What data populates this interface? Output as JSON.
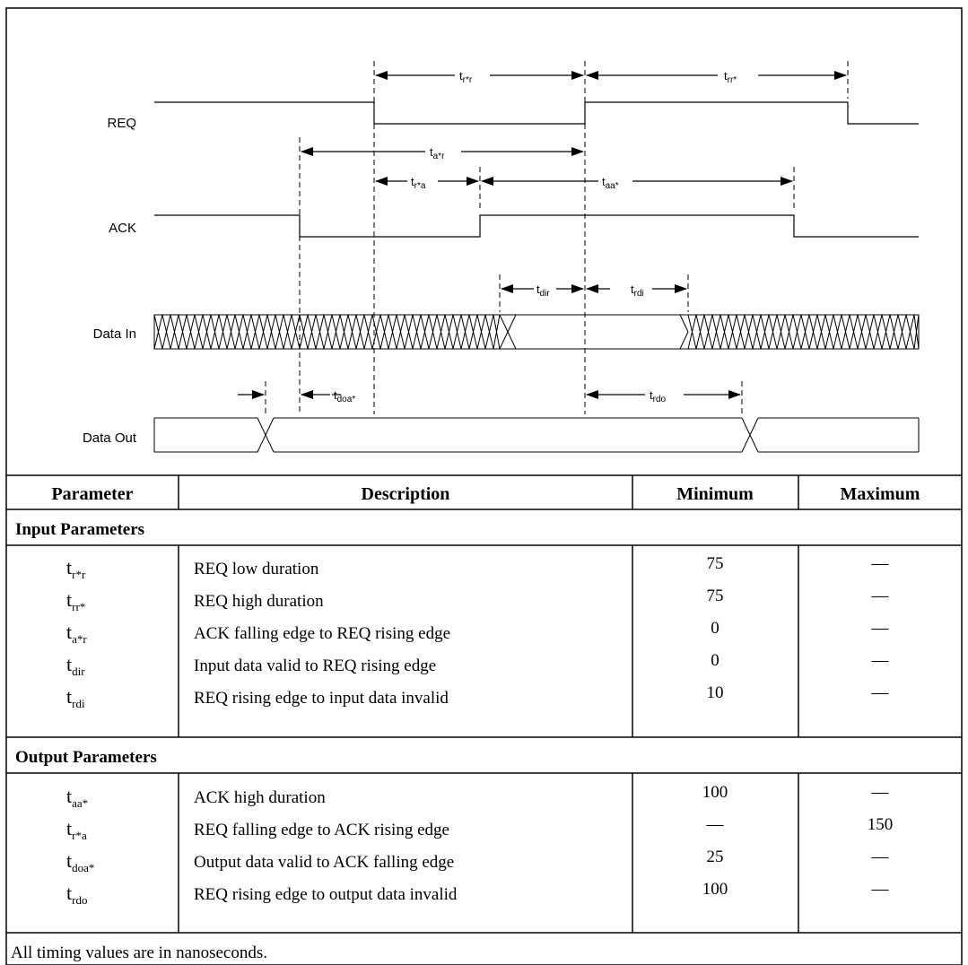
{
  "diagram": {
    "signals": [
      {
        "id": "req",
        "label": "REQ"
      },
      {
        "id": "ack",
        "label": "ACK"
      },
      {
        "id": "din",
        "label": "Data In"
      },
      {
        "id": "dout",
        "label": "Data Out"
      }
    ],
    "timing_labels": [
      {
        "id": "trr_star_a",
        "base": "t",
        "sub": "r*r"
      },
      {
        "id": "trr_star_b",
        "base": "t",
        "sub": "rr*"
      },
      {
        "id": "tastar_r",
        "base": "t",
        "sub": "a*r"
      },
      {
        "id": "trstar_a",
        "base": "t",
        "sub": "r*a"
      },
      {
        "id": "taastar",
        "base": "t",
        "sub": "aa*"
      },
      {
        "id": "tdir",
        "base": "t",
        "sub": "dir"
      },
      {
        "id": "trdi",
        "base": "t",
        "sub": "rdi"
      },
      {
        "id": "tdoastar",
        "base": "t",
        "sub": "doa*"
      },
      {
        "id": "trdo",
        "base": "t",
        "sub": "rdo"
      }
    ]
  },
  "table": {
    "headers": [
      "Parameter",
      "Description",
      "Minimum",
      "Maximum"
    ],
    "sections": [
      {
        "title": "Input Parameters",
        "rows": [
          {
            "sym": "t",
            "sub": "r*r",
            "desc": "REQ low duration",
            "min": "75",
            "max": "—"
          },
          {
            "sym": "t",
            "sub": "rr*",
            "desc": "REQ high duration",
            "min": "75",
            "max": "—"
          },
          {
            "sym": "t",
            "sub": "a*r",
            "desc": "ACK falling edge to REQ rising edge",
            "min": "0",
            "max": "—"
          },
          {
            "sym": "t",
            "sub": "dir",
            "desc": "Input data valid to REQ rising edge",
            "min": "0",
            "max": "—"
          },
          {
            "sym": "t",
            "sub": "rdi",
            "desc": "REQ rising edge to input data invalid",
            "min": "10",
            "max": "—"
          }
        ]
      },
      {
        "title": "Output Parameters",
        "rows": [
          {
            "sym": "t",
            "sub": "aa*",
            "desc": "ACK high duration",
            "min": "100",
            "max": "—"
          },
          {
            "sym": "t",
            "sub": "r*a",
            "desc": "REQ falling edge to ACK rising edge",
            "min": "—",
            "max": "150"
          },
          {
            "sym": "t",
            "sub": "doa*",
            "desc": "Output data valid to ACK falling edge",
            "min": "25",
            "max": "—"
          },
          {
            "sym": "t",
            "sub": "rdo",
            "desc": "REQ rising edge to output data invalid",
            "min": "100",
            "max": "—"
          }
        ]
      }
    ],
    "footnote": "All timing values are in nanoseconds."
  }
}
